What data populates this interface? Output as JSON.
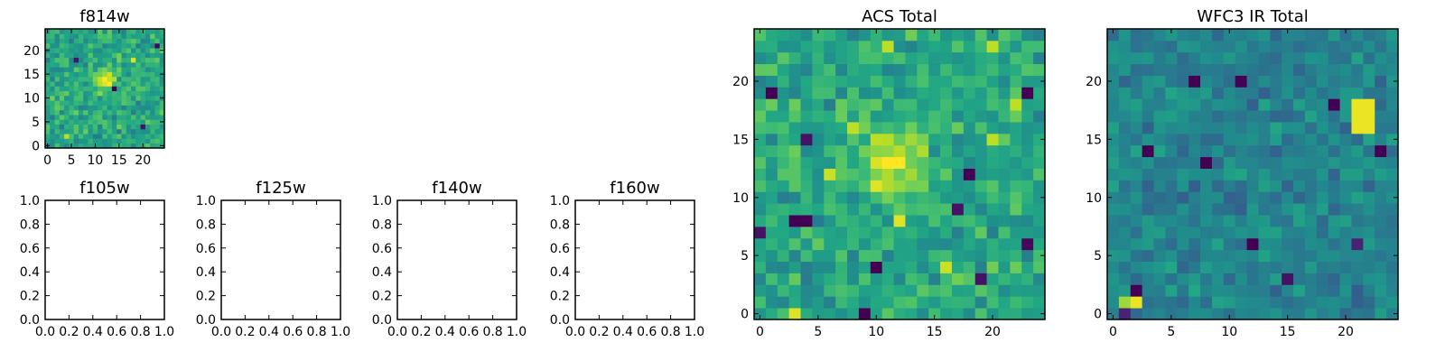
{
  "chart_data": [
    {
      "id": "f814w",
      "type": "heatmap",
      "title": "f814w",
      "size": 25,
      "xlim": [
        -0.5,
        24.5
      ],
      "ylim": [
        -0.5,
        24.5
      ],
      "xticks": [
        0,
        5,
        10,
        15,
        20
      ],
      "yticks": [
        0,
        5,
        10,
        15,
        20
      ],
      "xticklabels": [
        "0",
        "5",
        "10",
        "15",
        "20"
      ],
      "yticklabels": [
        "0",
        "5",
        "10",
        "15",
        "20"
      ],
      "colormap": "viridis",
      "seed": 11,
      "blobs": [
        {
          "x": 12,
          "y": 14,
          "amp": 0.45,
          "sigma": 1.4
        }
      ],
      "hot_pixels": [
        {
          "x": 18,
          "y": 18,
          "v": 0.95
        },
        {
          "x": 4,
          "y": 2,
          "v": 0.9
        }
      ],
      "dead_pixels": [
        {
          "x": 23,
          "y": 21,
          "v": 0.02
        },
        {
          "x": 14,
          "y": 12,
          "v": 0.0
        },
        {
          "x": 6,
          "y": 18,
          "v": 0.05
        },
        {
          "x": 20,
          "y": 4,
          "v": 0.05
        }
      ]
    },
    {
      "id": "f105w",
      "type": "empty",
      "title": "f105w",
      "xlim": [
        0,
        1
      ],
      "ylim": [
        0,
        1
      ],
      "xticks": [
        0,
        0.2,
        0.4,
        0.6,
        0.8,
        1.0
      ],
      "yticks": [
        0,
        0.2,
        0.4,
        0.6,
        0.8,
        1.0
      ],
      "xticklabels": [
        "0.0",
        "0.2",
        "0.4",
        "0.6",
        "0.8",
        "1.0"
      ],
      "yticklabels": [
        "0.0",
        "0.2",
        "0.4",
        "0.6",
        "0.8",
        "1.0"
      ]
    },
    {
      "id": "f125w",
      "type": "empty",
      "title": "f125w",
      "xlim": [
        0,
        1
      ],
      "ylim": [
        0,
        1
      ],
      "xticks": [
        0,
        0.2,
        0.4,
        0.6,
        0.8,
        1.0
      ],
      "yticks": [
        0,
        0.2,
        0.4,
        0.6,
        0.8,
        1.0
      ],
      "xticklabels": [
        "0.0",
        "0.2",
        "0.4",
        "0.6",
        "0.8",
        "1.0"
      ],
      "yticklabels": [
        "0.0",
        "0.2",
        "0.4",
        "0.6",
        "0.8",
        "1.0"
      ]
    },
    {
      "id": "f140w",
      "type": "empty",
      "title": "f140w",
      "xlim": [
        0,
        1
      ],
      "ylim": [
        0,
        1
      ],
      "xticks": [
        0,
        0.2,
        0.4,
        0.6,
        0.8,
        1.0
      ],
      "yticks": [
        0,
        0.2,
        0.4,
        0.6,
        0.8,
        1.0
      ],
      "xticklabels": [
        "0.0",
        "0.2",
        "0.4",
        "0.6",
        "0.8",
        "1.0"
      ],
      "yticklabels": [
        "0.0",
        "0.2",
        "0.4",
        "0.6",
        "0.8",
        "1.0"
      ]
    },
    {
      "id": "f160w",
      "type": "empty",
      "title": "f160w",
      "xlim": [
        0,
        1
      ],
      "ylim": [
        0,
        1
      ],
      "xticks": [
        0,
        0.2,
        0.4,
        0.6,
        0.8,
        1.0
      ],
      "yticks": [
        0,
        0.2,
        0.4,
        0.6,
        0.8,
        1.0
      ],
      "xticklabels": [
        "0.0",
        "0.2",
        "0.4",
        "0.6",
        "0.8",
        "1.0"
      ],
      "yticklabels": [
        "0.0",
        "0.2",
        "0.4",
        "0.6",
        "0.8",
        "1.0"
      ]
    },
    {
      "id": "acs_total",
      "type": "heatmap",
      "title": "ACS Total",
      "size": 25,
      "xlim": [
        -0.5,
        24.5
      ],
      "ylim": [
        -0.5,
        24.5
      ],
      "xticks": [
        0,
        5,
        10,
        15,
        20
      ],
      "yticks": [
        0,
        5,
        10,
        15,
        20
      ],
      "xticklabels": [
        "0",
        "5",
        "10",
        "15",
        "20"
      ],
      "yticklabels": [
        "0",
        "5",
        "10",
        "15",
        "20"
      ],
      "colormap": "viridis",
      "seed": 23,
      "blobs": [
        {
          "x": 11,
          "y": 13,
          "amp": 0.4,
          "sigma": 1.8
        }
      ],
      "hot_pixels": [
        {
          "x": 3,
          "y": 0,
          "v": 0.95
        },
        {
          "x": 10,
          "y": 11,
          "v": 0.95
        },
        {
          "x": 6,
          "y": 12,
          "v": 0.92
        },
        {
          "x": 8,
          "y": 16,
          "v": 0.9
        },
        {
          "x": 12,
          "y": 8,
          "v": 0.95
        },
        {
          "x": 16,
          "y": 4,
          "v": 0.92
        },
        {
          "x": 20,
          "y": 15,
          "v": 0.9
        },
        {
          "x": 22,
          "y": 18,
          "v": 0.9
        },
        {
          "x": 11,
          "y": 23,
          "v": 0.9
        },
        {
          "x": 20,
          "y": 23,
          "v": 0.9
        }
      ],
      "dead_pixels": [
        {
          "x": 1,
          "y": 19,
          "v": 0.0
        },
        {
          "x": 3,
          "y": 8,
          "v": 0.0
        },
        {
          "x": 4,
          "y": 8,
          "v": 0.0
        },
        {
          "x": 9,
          "y": 0,
          "v": 0.0
        },
        {
          "x": 10,
          "y": 4,
          "v": 0.0
        },
        {
          "x": 18,
          "y": 12,
          "v": 0.0
        },
        {
          "x": 23,
          "y": 19,
          "v": 0.0
        },
        {
          "x": 23,
          "y": 6,
          "v": 0.02
        },
        {
          "x": 19,
          "y": 3,
          "v": 0.05
        },
        {
          "x": 0,
          "y": 7,
          "v": 0.05
        },
        {
          "x": 17,
          "y": 9,
          "v": 0.05
        },
        {
          "x": 4,
          "y": 15,
          "v": 0.05
        }
      ]
    },
    {
      "id": "wfc3_ir_total",
      "type": "heatmap",
      "title": "WFC3 IR Total",
      "size": 25,
      "xlim": [
        -0.5,
        24.5
      ],
      "ylim": [
        -0.5,
        24.5
      ],
      "xticks": [
        0,
        5,
        10,
        15,
        20
      ],
      "yticks": [
        0,
        5,
        10,
        15,
        20
      ],
      "xticklabels": [
        "0",
        "5",
        "10",
        "15",
        "20"
      ],
      "yticklabels": [
        "0",
        "5",
        "10",
        "15",
        "20"
      ],
      "colormap": "viridis",
      "seed": 37,
      "base_mean": 0.45,
      "base_spread": 0.16,
      "blobs": [],
      "hot_pixels": [
        {
          "x": 21,
          "y": 16,
          "v": 0.97
        },
        {
          "x": 22,
          "y": 16,
          "v": 0.97
        },
        {
          "x": 21,
          "y": 17,
          "v": 0.97
        },
        {
          "x": 22,
          "y": 17,
          "v": 0.97
        },
        {
          "x": 21,
          "y": 18,
          "v": 0.97
        },
        {
          "x": 22,
          "y": 18,
          "v": 0.97
        },
        {
          "x": 2,
          "y": 1,
          "v": 0.97
        },
        {
          "x": 1,
          "y": 1,
          "v": 0.85
        }
      ],
      "dead_pixels": [
        {
          "x": 7,
          "y": 20,
          "v": 0.0
        },
        {
          "x": 11,
          "y": 20,
          "v": 0.0
        },
        {
          "x": 19,
          "y": 18,
          "v": 0.0
        },
        {
          "x": 3,
          "y": 14,
          "v": 0.0
        },
        {
          "x": 8,
          "y": 13,
          "v": 0.0
        },
        {
          "x": 23,
          "y": 14,
          "v": 0.0
        },
        {
          "x": 12,
          "y": 6,
          "v": 0.0
        },
        {
          "x": 2,
          "y": 2,
          "v": 0.0
        },
        {
          "x": 15,
          "y": 3,
          "v": 0.05
        },
        {
          "x": 21,
          "y": 6,
          "v": 0.1
        },
        {
          "x": 1,
          "y": 0,
          "v": 0.1
        }
      ]
    }
  ]
}
